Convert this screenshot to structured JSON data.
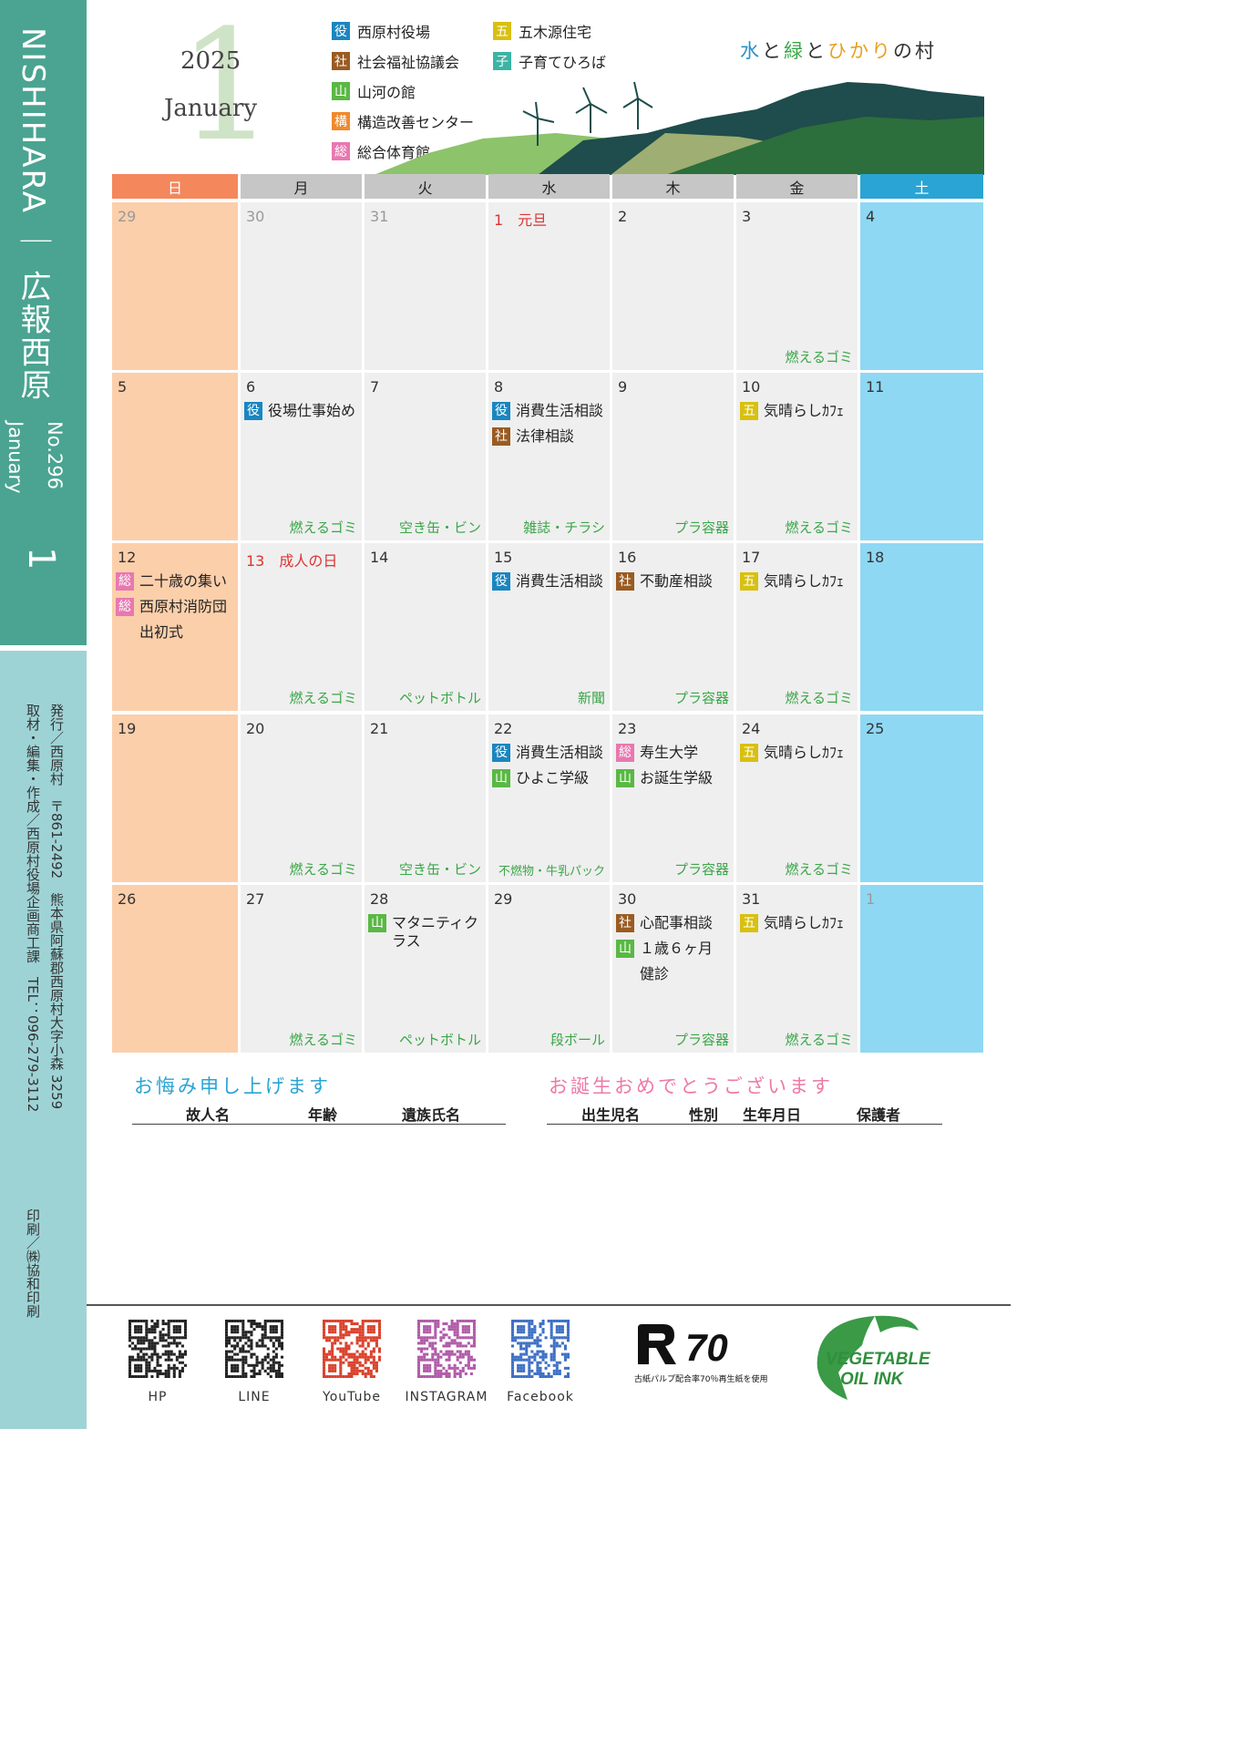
{
  "sidebar": {
    "title": "NISHIHARA ｜ 広報西原",
    "issue_no": "No.296",
    "issue_month": "January",
    "issue_number_big": "1",
    "info_lines": [
      "発行／西原村　〒861-2492　熊本県阿蘇郡西原村大字小森 3259",
      "取材・編集・作成／西原村役場企画商工課　TEL：096-279-3112",
      "印刷／㈱協和印刷"
    ]
  },
  "header": {
    "year": "2025",
    "month_name": "January",
    "big_month": "1",
    "slogan_parts": [
      {
        "text": "水",
        "color": "#2a90c8"
      },
      {
        "text": "と",
        "color": "#333333"
      },
      {
        "text": "緑",
        "color": "#3aa648"
      },
      {
        "text": "と",
        "color": "#333333"
      },
      {
        "text": "ひかり",
        "color": "#e8a020"
      },
      {
        "text": "の村",
        "color": "#333333"
      }
    ]
  },
  "legend": [
    {
      "tag": "役",
      "label": "西原村役場",
      "color": "#1a86c0"
    },
    {
      "tag": "社",
      "label": "社会福祉協議会",
      "color": "#9a5b22"
    },
    {
      "tag": "山",
      "label": "山河の館",
      "color": "#5ab844"
    },
    {
      "tag": "構",
      "label": "構造改善センター",
      "color": "#f08a2c"
    },
    {
      "tag": "総",
      "label": "総合体育館",
      "color": "#e878b0"
    },
    {
      "tag": "五",
      "label": "五木源住宅",
      "color": "#d8c010"
    },
    {
      "tag": "子",
      "label": "子育てひろば",
      "color": "#3bb4a4"
    }
  ],
  "colors": {
    "sunday_cell": "#fccfab",
    "saturday_cell": "#8ed8f4",
    "sunday_header": "#f4875c",
    "saturday_header": "#2aa4d4",
    "weekday_header": "#c6c6c6",
    "garbage_text": "#3aa648",
    "holiday_text": "#d33333"
  },
  "calendar": {
    "weekdays": [
      "日",
      "月",
      "火",
      "水",
      "木",
      "金",
      "土"
    ],
    "weeks": [
      [
        {
          "day": "29",
          "grey": true,
          "events": [],
          "garbage": ""
        },
        {
          "day": "30",
          "grey": true,
          "events": [],
          "garbage": ""
        },
        {
          "day": "31",
          "grey": true,
          "events": [],
          "garbage": ""
        },
        {
          "day": "1　元旦",
          "holiday": true,
          "events": [],
          "garbage": ""
        },
        {
          "day": "2",
          "events": [],
          "garbage": ""
        },
        {
          "day": "3",
          "events": [],
          "garbage": "燃えるゴミ"
        },
        {
          "day": "4",
          "events": [],
          "garbage": ""
        }
      ],
      [
        {
          "day": "5",
          "events": [],
          "garbage": ""
        },
        {
          "day": "6",
          "events": [
            {
              "tag": "役",
              "text": "役場仕事始め"
            }
          ],
          "garbage": "燃えるゴミ"
        },
        {
          "day": "7",
          "events": [],
          "garbage": "空き缶・ビン"
        },
        {
          "day": "8",
          "events": [
            {
              "tag": "役",
              "text": "消費生活相談"
            },
            {
              "tag": "社",
              "text": "法律相談"
            }
          ],
          "garbage": "雑誌・チラシ"
        },
        {
          "day": "9",
          "events": [],
          "garbage": "プラ容器"
        },
        {
          "day": "10",
          "events": [
            {
              "tag": "五",
              "text": "気晴らしｶﾌｪ"
            }
          ],
          "garbage": "燃えるゴミ"
        },
        {
          "day": "11",
          "events": [],
          "garbage": ""
        }
      ],
      [
        {
          "day": "12",
          "events": [
            {
              "tag": "総",
              "text": "二十歳の集い"
            },
            {
              "tag": "総",
              "text": "西原村消防団"
            },
            {
              "tag": "",
              "text": "出初式"
            }
          ],
          "garbage": ""
        },
        {
          "day": "13　成人の日",
          "holiday": true,
          "events": [],
          "garbage": "燃えるゴミ"
        },
        {
          "day": "14",
          "events": [],
          "garbage": "ペットボトル"
        },
        {
          "day": "15",
          "events": [
            {
              "tag": "役",
              "text": "消費生活相談"
            }
          ],
          "garbage": "新聞"
        },
        {
          "day": "16",
          "events": [
            {
              "tag": "社",
              "text": "不動産相談"
            }
          ],
          "garbage": "プラ容器"
        },
        {
          "day": "17",
          "events": [
            {
              "tag": "五",
              "text": "気晴らしｶﾌｪ"
            }
          ],
          "garbage": "燃えるゴミ"
        },
        {
          "day": "18",
          "events": [],
          "garbage": ""
        }
      ],
      [
        {
          "day": "19",
          "events": [],
          "garbage": ""
        },
        {
          "day": "20",
          "events": [],
          "garbage": "燃えるゴミ"
        },
        {
          "day": "21",
          "events": [],
          "garbage": "空き缶・ビン"
        },
        {
          "day": "22",
          "events": [
            {
              "tag": "役",
              "text": "消費生活相談"
            },
            {
              "tag": "山",
              "text": "ひよこ学級"
            }
          ],
          "garbage": "不燃物・牛乳パック"
        },
        {
          "day": "23",
          "events": [
            {
              "tag": "総",
              "text": "寿生大学"
            },
            {
              "tag": "山",
              "text": "お誕生学級"
            }
          ],
          "garbage": "プラ容器"
        },
        {
          "day": "24",
          "events": [
            {
              "tag": "五",
              "text": "気晴らしｶﾌｪ"
            }
          ],
          "garbage": "燃えるゴミ"
        },
        {
          "day": "25",
          "events": [],
          "garbage": ""
        }
      ],
      [
        {
          "day": "26",
          "events": [],
          "garbage": ""
        },
        {
          "day": "27",
          "events": [],
          "garbage": "燃えるゴミ"
        },
        {
          "day": "28",
          "events": [
            {
              "tag": "山",
              "text": "マタニティクラス"
            }
          ],
          "garbage": "ペットボトル"
        },
        {
          "day": "29",
          "events": [],
          "garbage": "段ボール"
        },
        {
          "day": "30",
          "events": [
            {
              "tag": "社",
              "text": "心配事相談"
            },
            {
              "tag": "山",
              "text": "１歳６ヶ月"
            },
            {
              "tag": "",
              "text": "健診"
            }
          ],
          "garbage": "プラ容器"
        },
        {
          "day": "31",
          "events": [
            {
              "tag": "五",
              "text": "気晴らしｶﾌｪ"
            }
          ],
          "garbage": "燃えるゴミ"
        },
        {
          "day": "1",
          "grey": true,
          "events": [],
          "garbage": ""
        }
      ]
    ]
  },
  "condolences": {
    "title": "お悔み申し上げます",
    "headers": [
      "故人名",
      "年齢",
      "遺族氏名"
    ]
  },
  "births": {
    "title": "お誕生おめでとうございます",
    "headers": [
      "出生児名",
      "性別",
      "生年月日",
      "保護者"
    ]
  },
  "footer": {
    "links": [
      {
        "label": "HP",
        "icon": "qr-hp-icon",
        "color": "#222222"
      },
      {
        "label": "LINE",
        "icon": "qr-line-icon",
        "color": "#222222"
      },
      {
        "label": "YouTube",
        "icon": "qr-youtube-icon",
        "color": "#d9412b"
      },
      {
        "label": "INSTAGRAM",
        "icon": "qr-instagram-icon",
        "color": "#b05aa8"
      },
      {
        "label": "Facebook",
        "icon": "qr-facebook-icon",
        "color": "#3d6fc4"
      }
    ],
    "recycle_mark": "R70",
    "recycle_caption": "古紙パルプ配合率70％再生紙を使用",
    "veg_ink_line1": "VEGETABLE",
    "veg_ink_line2": "OIL INK"
  }
}
